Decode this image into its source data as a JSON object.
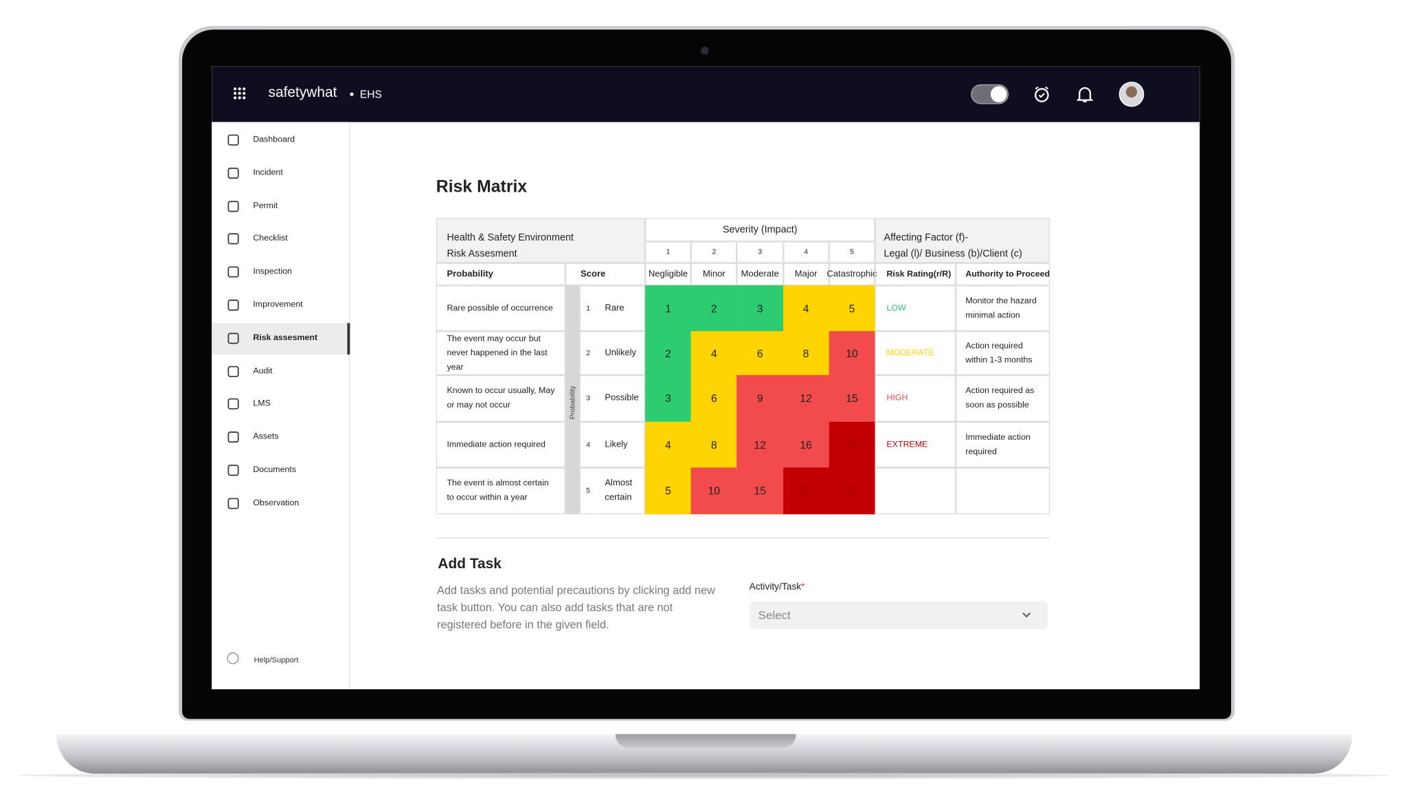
{
  "topbar": {
    "brand": "safetywhat",
    "module": "EHS"
  },
  "sidebar": {
    "items": [
      {
        "label": "Dashboard"
      },
      {
        "label": "Incident"
      },
      {
        "label": "Permit"
      },
      {
        "label": "Checklist"
      },
      {
        "label": "Inspection"
      },
      {
        "label": "Improvement"
      },
      {
        "label": "Risk assesment",
        "active": true
      },
      {
        "label": "Audit"
      },
      {
        "label": "LMS"
      },
      {
        "label": "Assets"
      },
      {
        "label": "Documents"
      },
      {
        "label": "Observation"
      }
    ],
    "help": "Help/Support"
  },
  "page": {
    "title": "Risk Matrix"
  },
  "matrix": {
    "header_left": [
      "Health & Safety Environment",
      "Risk Assesment"
    ],
    "severity_title": "Severity (Impact)",
    "severity_levels": [
      {
        "score": 1,
        "label": "Negligible"
      },
      {
        "score": 2,
        "label": "Minor"
      },
      {
        "score": 3,
        "label": "Moderate"
      },
      {
        "score": 4,
        "label": "Major"
      },
      {
        "score": 5,
        "label": "Catastrophic"
      }
    ],
    "factor_header": [
      "Affecting Factor (f)-",
      "Legal (l)/ Business (b)/Client (c)"
    ],
    "columns": {
      "probability": "Probability",
      "score": "Score",
      "risk_rating": "Risk Rating(r/R)",
      "authority": "Authority to Proceed"
    },
    "probability_axis": "Probability",
    "rows": [
      {
        "description": "Rare possible of occurrence",
        "score": 1,
        "label": "Rare",
        "cells": [
          1,
          2,
          3,
          4,
          5
        ],
        "colors": [
          "#2ecc71",
          "#2ecc71",
          "#2ecc71",
          "#ffd400",
          "#ffd400"
        ],
        "rating": "LOW",
        "rating_color": "#2ecc71",
        "authority": "Monitor the hazard minimal action"
      },
      {
        "description": "The event may occur but never happened in the last year",
        "score": 2,
        "label": "Unlikely",
        "cells": [
          2,
          4,
          6,
          8,
          10
        ],
        "colors": [
          "#2ecc71",
          "#ffd400",
          "#ffd400",
          "#ffd400",
          "#f24b4b"
        ],
        "rating": "MODERATE",
        "rating_color": "#ffd400",
        "authority": "Action required within 1-3 months"
      },
      {
        "description": "Known to occur usually, May or may not occur",
        "score": 3,
        "label": "Possible",
        "cells": [
          3,
          6,
          9,
          12,
          15
        ],
        "colors": [
          "#2ecc71",
          "#ffd400",
          "#f24b4b",
          "#f24b4b",
          "#f24b4b"
        ],
        "rating": "HIGH",
        "rating_color": "#f24b4b",
        "authority": "Action required as soon as possible"
      },
      {
        "description": "Immediate action required",
        "score": 4,
        "label": "Likely",
        "cells": [
          4,
          8,
          12,
          16,
          20
        ],
        "colors": [
          "#ffd400",
          "#ffd400",
          "#f24b4b",
          "#f24b4b",
          "#c20000"
        ],
        "rating": "EXTREME",
        "rating_color": "#c20000",
        "authority": "Immediate action required"
      },
      {
        "description": "The event is almost certain to occur within a year",
        "score": 5,
        "label": "Almost certain",
        "cells": [
          5,
          10,
          15,
          20,
          25
        ],
        "colors": [
          "#ffd400",
          "#f24b4b",
          "#f24b4b",
          "#c20000",
          "#c20000"
        ]
      }
    ]
  },
  "add_task": {
    "title": "Add Task",
    "description": "Add tasks and potential precautions by clicking add new task button. You can also add tasks  that are not registered before in the given field.",
    "field_label": "Activity/Task",
    "required_mark": "*",
    "placeholder": "Select"
  }
}
